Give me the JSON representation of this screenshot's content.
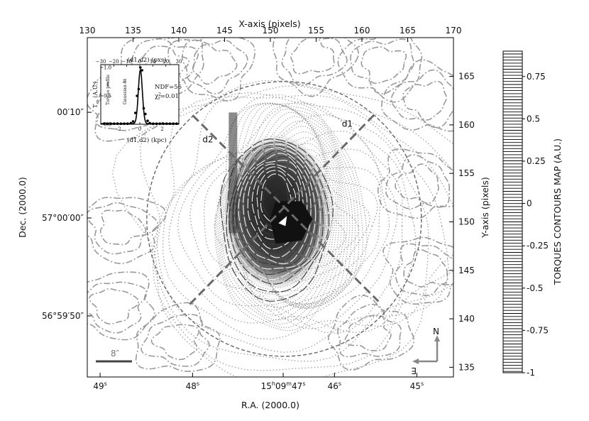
{
  "chart_data": [
    {
      "type": "contour",
      "xlabel_top": "X-axis (pixels)",
      "xlabel_bottom": "R.A. (2000.0)",
      "ylabel_left": "Dec. (2000.0)",
      "ylabel_right": "Y-axis (pixels)",
      "xlim_pixels": [
        130,
        170
      ],
      "ylim_pixels": [
        134,
        169
      ],
      "x_ticks_top": [
        "130",
        "135",
        "140",
        "145",
        "150",
        "155",
        "160",
        "165",
        "170"
      ],
      "x_tick_values_top": [
        130,
        135,
        140,
        145,
        150,
        155,
        160,
        165,
        170
      ],
      "y_ticks_right": [
        "135",
        "140",
        "145",
        "150",
        "155",
        "160",
        "165"
      ],
      "y_tick_values_right": [
        135,
        140,
        145,
        150,
        155,
        160,
        165
      ],
      "x_ticks_bottom": [
        {
          "label": "49",
          "sup": "s",
          "at": 131.4
        },
        {
          "label": "48",
          "sup": "s",
          "at": 141.5
        },
        {
          "label": "15",
          "sup": "h",
          "label2": "09",
          "sup2": "m",
          "label3": "47",
          "sup3": "s",
          "at": 151.4
        },
        {
          "label": "46",
          "sup": "s",
          "at": 157.0
        },
        {
          "label": "45",
          "sup": "s",
          "at": 166.0
        }
      ],
      "y_ticks_left": [
        {
          "label": "00′10″",
          "at": 161.3
        },
        {
          "label": "57°00′00″",
          "at": 150.4
        },
        {
          "label": "56°59′50″",
          "at": 140.3
        }
      ],
      "center": [
        151.5,
        150.3
      ],
      "circle_radius": 15.0,
      "cuts": [
        {
          "name": "d1",
          "from": [
            141.2,
            141.5
          ],
          "to": [
            161.3,
            161.0
          ]
        },
        {
          "name": "d2",
          "from": [
            141.5,
            161.0
          ],
          "to": [
            161.8,
            141.8
          ]
        }
      ],
      "scale_bar_label": "8″",
      "compass": {
        "north": "N",
        "east": "E"
      }
    },
    {
      "type": "line",
      "title_top": "(d1,d2) (pxs)",
      "xlabel": "(d1,d2) (kpc)",
      "ylabel": "T_sp (A.U.)",
      "ylabel_main": "T",
      "ylabel_sub": "sp",
      "ylabel_unit": "(A.U.)",
      "top_ticks": [
        "−30",
        "−20",
        "−10",
        "0",
        "10",
        "20",
        "30"
      ],
      "top_tick_values": [
        -30,
        -20,
        -10,
        0,
        10,
        20,
        30
      ],
      "bottom_ticks": [
        "−2",
        "0",
        "2"
      ],
      "bottom_tick_values": [
        -2,
        0,
        2
      ],
      "y_ticks": [
        "0.0",
        "0.5",
        "1.0"
      ],
      "y_tick_values": [
        0,
        0.5,
        1.0
      ],
      "xlim_kpc": [
        -3.5,
        3.5
      ],
      "ylim": [
        0,
        1.05
      ],
      "legend": [
        "Torque profile",
        "Gaussian fit"
      ],
      "annotations": {
        "ndf": "NDF=56",
        "chi_main": "χ",
        "chi_sup": "2",
        "chi_sub": "r",
        "chi_value": "=0.01"
      },
      "points": [
        {
          "x": -3.2,
          "y": 0.01
        },
        {
          "x": -2.9,
          "y": 0.01
        },
        {
          "x": -2.6,
          "y": 0.01
        },
        {
          "x": -2.3,
          "y": 0.01
        },
        {
          "x": -2.0,
          "y": 0.01
        },
        {
          "x": -1.7,
          "y": 0.01
        },
        {
          "x": -1.4,
          "y": 0.01
        },
        {
          "x": -1.1,
          "y": 0.01
        },
        {
          "x": -0.8,
          "y": 0.02
        },
        {
          "x": -0.6,
          "y": 0.05
        },
        {
          "x": -0.4,
          "y": 0.2
        },
        {
          "x": -0.25,
          "y": 0.5
        },
        {
          "x": -0.1,
          "y": 0.62
        },
        {
          "x": 0.05,
          "y": 1.0
        },
        {
          "x": 0.2,
          "y": 0.95
        },
        {
          "x": 0.35,
          "y": 0.28
        },
        {
          "x": 0.5,
          "y": 0.18
        },
        {
          "x": 0.7,
          "y": 0.06
        },
        {
          "x": 0.9,
          "y": 0.02
        },
        {
          "x": 1.2,
          "y": 0.01
        },
        {
          "x": 1.5,
          "y": 0.01
        },
        {
          "x": 1.8,
          "y": 0.01
        },
        {
          "x": 2.1,
          "y": 0.01
        },
        {
          "x": 2.4,
          "y": 0.01
        },
        {
          "x": 2.7,
          "y": 0.01
        },
        {
          "x": 3.0,
          "y": 0.01
        },
        {
          "x": 3.3,
          "y": 0.01
        }
      ]
    },
    {
      "type": "colorbar",
      "label": "TORQUES CONTOURS MAP (A.U.)",
      "range": [
        -1,
        0.9
      ],
      "ticks": [
        "0.75",
        "0.5",
        "0.25",
        "0",
        "-0.25",
        "-0.5",
        "-0.75",
        "-1"
      ],
      "tick_values": [
        0.75,
        0.5,
        0.25,
        0,
        -0.25,
        -0.5,
        -0.75,
        -1
      ]
    }
  ]
}
